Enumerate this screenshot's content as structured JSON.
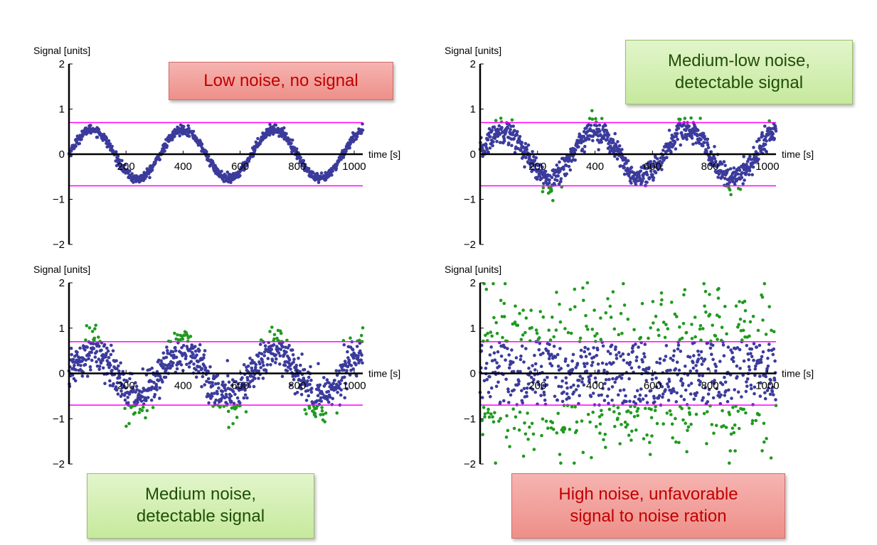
{
  "chart_data": [
    {
      "type": "scatter",
      "ylabel": "Signal [units]",
      "xlabel": "time [s]",
      "xticks": [
        200,
        400,
        600,
        800,
        1000
      ],
      "yticks": [
        -2,
        -1,
        0,
        1,
        2
      ],
      "xlim": [
        0,
        1030
      ],
      "ylim": [
        -2,
        2
      ],
      "thresholds": [
        0.7,
        -0.7
      ],
      "signal": {
        "amplitude": 0.55,
        "period": 320,
        "noise_sd": 0.05
      },
      "callout": "Low noise, no signal",
      "callout_style": "red"
    },
    {
      "type": "scatter",
      "ylabel": "Signal [units]",
      "xlabel": "time [s]",
      "xticks": [
        200,
        400,
        600,
        800,
        1000
      ],
      "yticks": [
        -2,
        -1,
        0,
        1,
        2
      ],
      "xlim": [
        0,
        1030
      ],
      "ylim": [
        -2,
        2
      ],
      "thresholds": [
        0.7,
        -0.7
      ],
      "signal": {
        "amplitude": 0.55,
        "period": 320,
        "noise_sd": 0.14
      },
      "callout": "Medium-low noise,\ndetectable signal",
      "callout_style": "green"
    },
    {
      "type": "scatter",
      "ylabel": "Signal [units]",
      "xlabel": "time [s]",
      "xticks": [
        200,
        400,
        600,
        800,
        1000
      ],
      "yticks": [
        -2,
        -1,
        0,
        1,
        2
      ],
      "xlim": [
        0,
        1030
      ],
      "ylim": [
        -2,
        2
      ],
      "thresholds": [
        0.7,
        -0.7
      ],
      "signal": {
        "amplitude": 0.55,
        "period": 320,
        "noise_sd": 0.24
      },
      "callout": "Medium noise,\ndetectable signal",
      "callout_style": "green"
    },
    {
      "type": "scatter",
      "ylabel": "Signal [units]",
      "xlabel": "time [s]",
      "xticks": [
        200,
        400,
        600,
        800,
        1000
      ],
      "yticks": [
        -2,
        -1,
        0,
        1,
        2
      ],
      "xlim": [
        0,
        1030
      ],
      "ylim": [
        -2,
        2
      ],
      "thresholds": [
        0.7,
        -0.7
      ],
      "signal": {
        "amplitude": 0.15,
        "period": 320,
        "noise_sd": 0.85
      },
      "callout": "High noise, unfavorable\nsignal to noise ration",
      "callout_style": "red"
    }
  ],
  "colors": {
    "inside_band": "#3b3b9c",
    "outside_band": "#1f9a1f",
    "threshold": "#ff00ff",
    "axis": "#000000"
  }
}
